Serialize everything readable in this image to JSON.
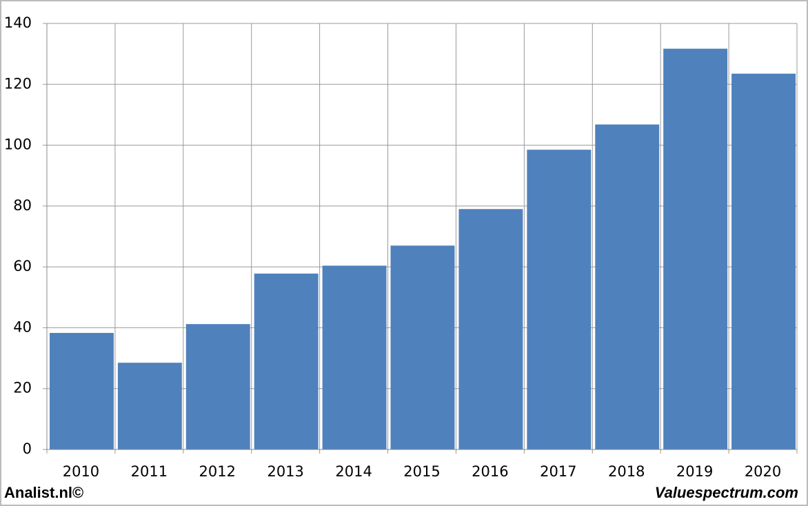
{
  "chart_data": {
    "type": "bar",
    "categories": [
      "2010",
      "2011",
      "2012",
      "2013",
      "2014",
      "2015",
      "2016",
      "2017",
      "2018",
      "2019",
      "2020"
    ],
    "values": [
      38.3,
      28.5,
      41.2,
      57.8,
      60.4,
      67,
      79,
      98.5,
      106.8,
      131.7,
      123.5
    ],
    "color": "#4f81bd",
    "ylim": [
      0,
      140
    ],
    "yticks": [
      0,
      20,
      40,
      60,
      80,
      100,
      120,
      140
    ],
    "grid": true
  },
  "footer": {
    "left": "Analist.nl©",
    "right": "Valuespectrum.com"
  }
}
